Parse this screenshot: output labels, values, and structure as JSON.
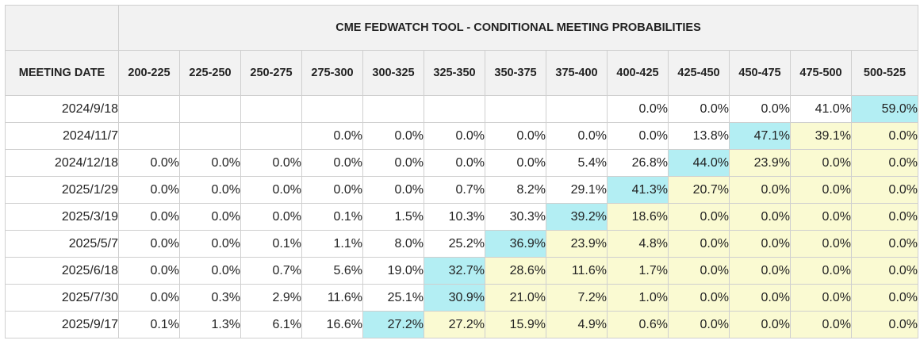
{
  "title": "CME FEDWATCH TOOL - CONDITIONAL MEETING PROBABILITIES",
  "date_header": "MEETING DATE",
  "ranges": [
    "200-225",
    "225-250",
    "250-275",
    "275-300",
    "300-325",
    "325-350",
    "350-375",
    "375-400",
    "400-425",
    "425-450",
    "450-475",
    "475-500",
    "500-525"
  ],
  "colors": {
    "header_bg": "#f2f2f2",
    "highlight": "#b3eef3",
    "above_highlight": "#fafad2",
    "border": "#cfcfcf"
  },
  "rows": [
    {
      "date": "2024/9/18",
      "values": [
        "",
        "",
        "",
        "",
        "",
        "",
        "",
        "",
        "0.0%",
        "0.0%",
        "0.0%",
        "41.0%",
        "59.0%"
      ],
      "max_index": 12
    },
    {
      "date": "2024/11/7",
      "values": [
        "",
        "",
        "",
        "0.0%",
        "0.0%",
        "0.0%",
        "0.0%",
        "0.0%",
        "0.0%",
        "13.8%",
        "47.1%",
        "39.1%",
        "0.0%"
      ],
      "max_index": 10
    },
    {
      "date": "2024/12/18",
      "values": [
        "0.0%",
        "0.0%",
        "0.0%",
        "0.0%",
        "0.0%",
        "0.0%",
        "0.0%",
        "5.4%",
        "26.8%",
        "44.0%",
        "23.9%",
        "0.0%",
        "0.0%"
      ],
      "max_index": 9
    },
    {
      "date": "2025/1/29",
      "values": [
        "0.0%",
        "0.0%",
        "0.0%",
        "0.0%",
        "0.0%",
        "0.7%",
        "8.2%",
        "29.1%",
        "41.3%",
        "20.7%",
        "0.0%",
        "0.0%",
        "0.0%"
      ],
      "max_index": 8
    },
    {
      "date": "2025/3/19",
      "values": [
        "0.0%",
        "0.0%",
        "0.0%",
        "0.1%",
        "1.5%",
        "10.3%",
        "30.3%",
        "39.2%",
        "18.6%",
        "0.0%",
        "0.0%",
        "0.0%",
        "0.0%"
      ],
      "max_index": 7
    },
    {
      "date": "2025/5/7",
      "values": [
        "0.0%",
        "0.0%",
        "0.1%",
        "1.1%",
        "8.0%",
        "25.2%",
        "36.9%",
        "23.9%",
        "4.8%",
        "0.0%",
        "0.0%",
        "0.0%",
        "0.0%"
      ],
      "max_index": 6
    },
    {
      "date": "2025/6/18",
      "values": [
        "0.0%",
        "0.0%",
        "0.7%",
        "5.6%",
        "19.0%",
        "32.7%",
        "28.6%",
        "11.6%",
        "1.7%",
        "0.0%",
        "0.0%",
        "0.0%",
        "0.0%"
      ],
      "max_index": 5
    },
    {
      "date": "2025/7/30",
      "values": [
        "0.0%",
        "0.3%",
        "2.9%",
        "11.6%",
        "25.1%",
        "30.9%",
        "21.0%",
        "7.2%",
        "1.0%",
        "0.0%",
        "0.0%",
        "0.0%",
        "0.0%"
      ],
      "max_index": 5
    },
    {
      "date": "2025/9/17",
      "values": [
        "0.1%",
        "1.3%",
        "6.1%",
        "16.6%",
        "27.2%",
        "27.2%",
        "15.9%",
        "4.9%",
        "0.6%",
        "0.0%",
        "0.0%",
        "0.0%",
        "0.0%"
      ],
      "max_index": 4
    }
  ]
}
